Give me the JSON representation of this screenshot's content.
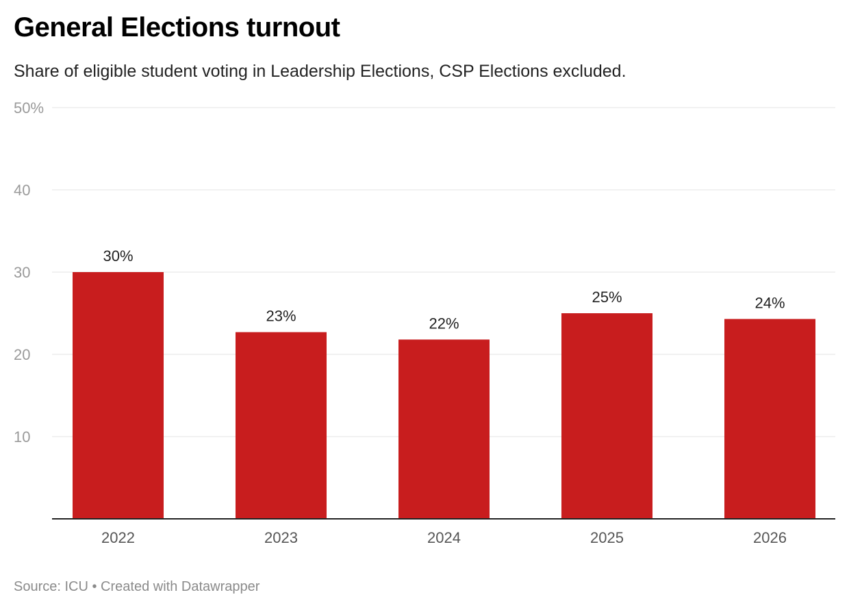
{
  "chart_data": {
    "type": "bar",
    "title": "General Elections turnout",
    "subtitle": "Share of eligible student voting in Leadership Elections, CSP Elections excluded.",
    "categories": [
      "2022",
      "2023",
      "2024",
      "2025",
      "2026"
    ],
    "values": [
      30,
      22.7,
      21.8,
      25,
      24.3
    ],
    "value_labels": [
      "30%",
      "23%",
      "22%",
      "25%",
      "24%"
    ],
    "xlabel": "",
    "ylabel": "",
    "ylim": [
      0,
      50
    ],
    "yticks": [
      10,
      20,
      30,
      40,
      50
    ],
    "ytick_labels": [
      "10",
      "20",
      "30",
      "40",
      "50%"
    ],
    "grid": true,
    "bar_color": "#c81d1e",
    "source": "Source: ICU • Created with Datawrapper"
  }
}
